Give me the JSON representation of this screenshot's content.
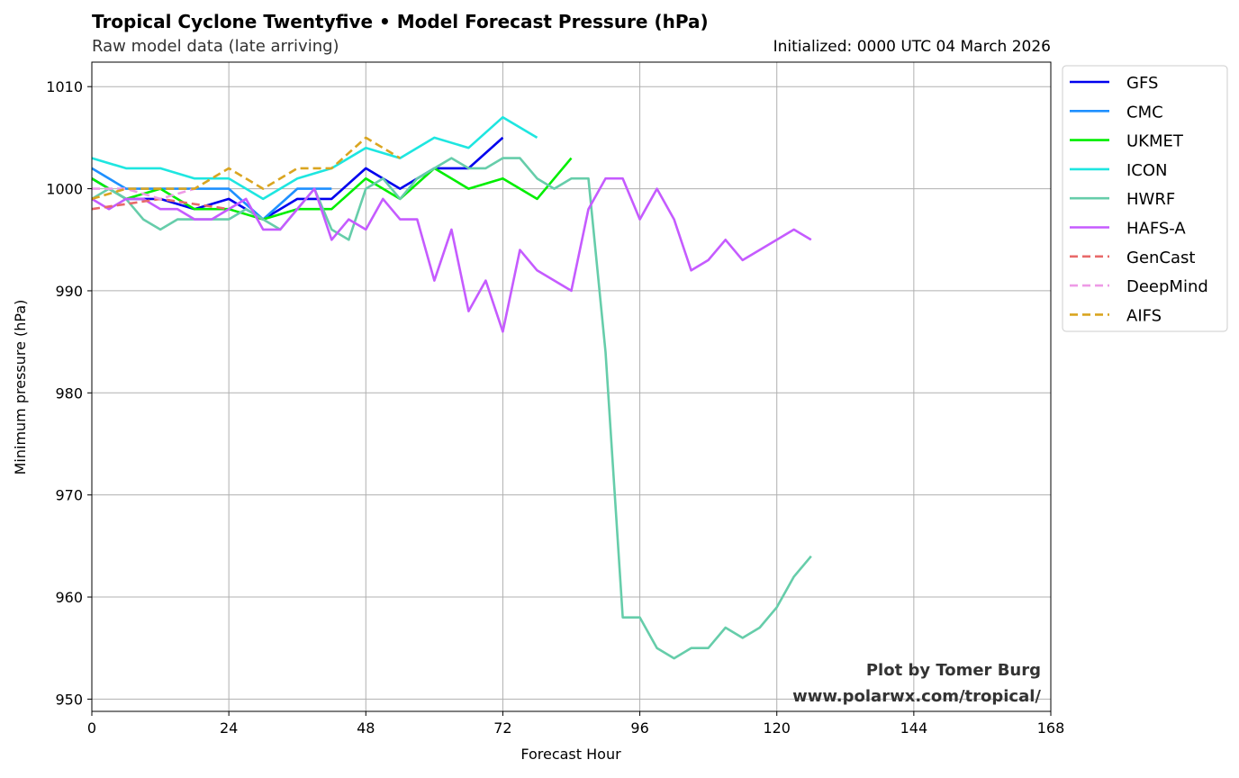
{
  "chart_data": {
    "type": "line",
    "title": "Tropical Cyclone Twentyfive • Model Forecast Pressure (hPa)",
    "subtitle": "Raw model data (late arriving)",
    "init_label": "Initialized: 0000 UTC 04 March 2026",
    "xlabel": "Forecast Hour",
    "ylabel": "Minimum pressure (hPa)",
    "xlim": [
      0,
      168
    ],
    "ylim": [
      948.8,
      1012.4
    ],
    "xticks": [
      0,
      24,
      48,
      72,
      96,
      120,
      144,
      168
    ],
    "yticks": [
      950,
      960,
      970,
      980,
      990,
      1000,
      1010
    ],
    "grid": true,
    "legend_position": "outside-top-right",
    "credit": [
      "Plot by Tomer Burg",
      "www.polarwx.com/tropical/"
    ],
    "series": [
      {
        "name": "GFS",
        "color": "#0000ee",
        "dashed": false,
        "x": [
          0,
          6,
          12,
          18,
          24,
          30,
          36,
          42,
          48,
          54,
          60,
          66,
          72
        ],
        "y": [
          1001,
          999,
          999,
          998,
          999,
          997,
          999,
          999,
          1002,
          1000,
          1002,
          1002,
          1005
        ]
      },
      {
        "name": "CMC",
        "color": "#1e90ff",
        "dashed": false,
        "x": [
          0,
          6,
          12,
          18,
          24,
          30,
          36,
          42
        ],
        "y": [
          1002,
          1000,
          1000,
          1000,
          1000,
          997,
          1000,
          1000
        ]
      },
      {
        "name": "UKMET",
        "color": "#00ee00",
        "dashed": false,
        "x": [
          0,
          6,
          12,
          18,
          24,
          30,
          36,
          42,
          48,
          54,
          60,
          66,
          72,
          78,
          84
        ],
        "y": [
          1001,
          999,
          1000,
          998,
          998,
          997,
          998,
          998,
          1001,
          999,
          1002,
          1000,
          1001,
          999,
          1003
        ]
      },
      {
        "name": "ICON",
        "color": "#1ee6e0",
        "dashed": false,
        "x": [
          0,
          6,
          12,
          18,
          24,
          30,
          36,
          42,
          48,
          54,
          60,
          66,
          72,
          78
        ],
        "y": [
          1003,
          1002,
          1002,
          1001,
          1001,
          999,
          1001,
          1002,
          1004,
          1003,
          1005,
          1004,
          1007,
          1005
        ]
      },
      {
        "name": "HWRF",
        "color": "#66cdaa",
        "dashed": false,
        "x": [
          0,
          3,
          6,
          9,
          12,
          15,
          18,
          21,
          24,
          27,
          30,
          33,
          36,
          39,
          42,
          45,
          48,
          51,
          54,
          57,
          60,
          63,
          66,
          69,
          72,
          75,
          78,
          81,
          84,
          87,
          90,
          93,
          96,
          99,
          102,
          105,
          108,
          111,
          114,
          117,
          120,
          123,
          126
        ],
        "y": [
          999,
          1000,
          999,
          997,
          996,
          997,
          997,
          997,
          997,
          998,
          997,
          996,
          998,
          1000,
          996,
          995,
          1000,
          1001,
          999,
          1001,
          1002,
          1003,
          1002,
          1002,
          1003,
          1003,
          1001,
          1000,
          1001,
          1001,
          984,
          958,
          958,
          955,
          954,
          955,
          955,
          957,
          956,
          957,
          959,
          962,
          964
        ]
      },
      {
        "name": "HAFS-A",
        "color": "#c55bff",
        "dashed": false,
        "x": [
          0,
          3,
          6,
          9,
          12,
          15,
          18,
          21,
          24,
          27,
          30,
          33,
          36,
          39,
          42,
          45,
          48,
          51,
          54,
          57,
          60,
          63,
          66,
          69,
          72,
          75,
          78,
          84,
          87,
          90,
          93,
          96,
          99,
          102,
          105,
          108,
          111,
          114,
          120,
          123,
          126
        ],
        "y": [
          999,
          998,
          999,
          999,
          998,
          998,
          997,
          997,
          998,
          999,
          996,
          996,
          998,
          1000,
          995,
          997,
          996,
          999,
          997,
          997,
          991,
          996,
          988,
          991,
          986,
          994,
          992,
          990,
          998,
          1001,
          1001,
          997,
          1000,
          997,
          992,
          993,
          995,
          993,
          995,
          996,
          995
        ]
      },
      {
        "name": "GenCast",
        "color": "#e86a6a",
        "dashed": true,
        "x": [
          0,
          6,
          12,
          18,
          24
        ],
        "y": [
          998,
          998.5,
          999,
          998.5,
          998
        ]
      },
      {
        "name": "DeepMind",
        "color": "#ee9ae6",
        "dashed": true,
        "x": [
          0,
          6,
          12,
          18
        ],
        "y": [
          1000,
          1000,
          999,
          1000
        ]
      },
      {
        "name": "AIFS",
        "color": "#daa520",
        "dashed": true,
        "x": [
          0,
          6,
          12,
          18,
          24,
          30,
          36,
          42,
          48,
          54
        ],
        "y": [
          999,
          1000,
          1000,
          1000,
          1002,
          1000,
          1002,
          1002,
          1005,
          1003
        ]
      }
    ]
  }
}
